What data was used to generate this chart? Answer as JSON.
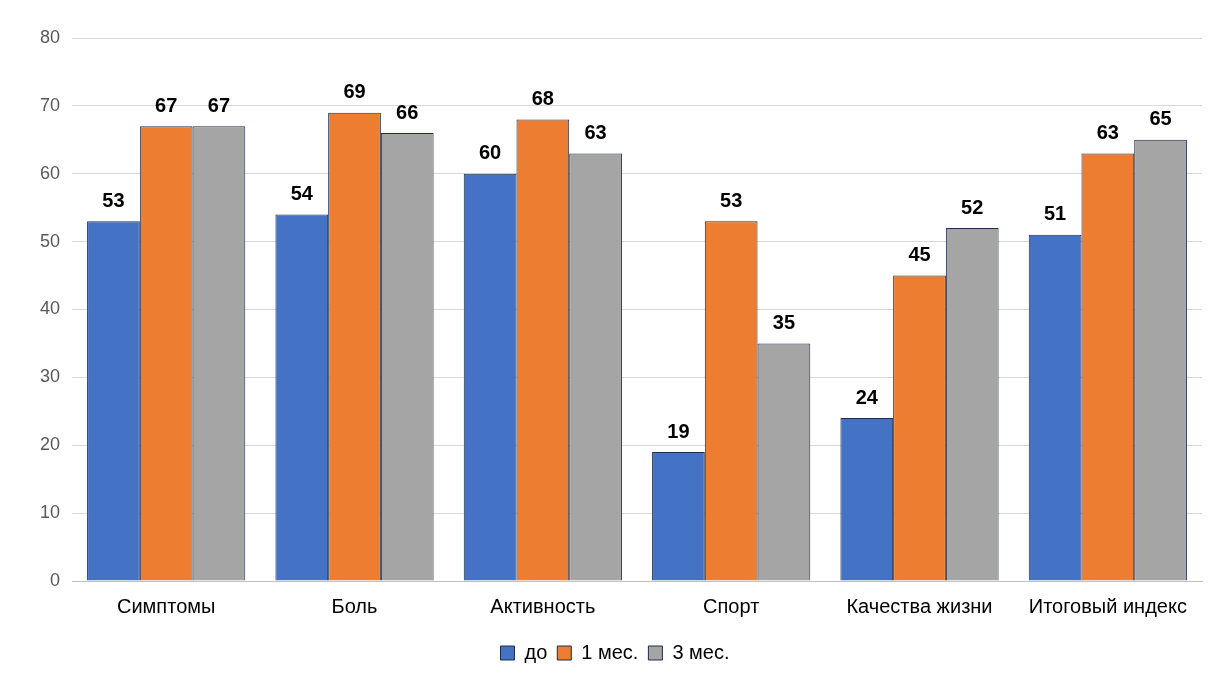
{
  "chart_data": {
    "type": "bar",
    "categories": [
      "Симптомы",
      "Боль",
      "Активность",
      "Спорт",
      "Качества жизни",
      "Итоговый индекс"
    ],
    "series": [
      {
        "name": "до",
        "color": "#4472c4",
        "values": [
          53,
          54,
          60,
          19,
          24,
          51
        ]
      },
      {
        "name": "1 мес.",
        "color": "#ed7d31",
        "values": [
          67,
          69,
          68,
          53,
          45,
          63
        ]
      },
      {
        "name": "3 мес.",
        "color": "#a5a5a5",
        "values": [
          67,
          66,
          63,
          35,
          52,
          65
        ]
      }
    ],
    "ylim": [
      0,
      80
    ],
    "yticks": [
      0,
      10,
      20,
      30,
      40,
      50,
      60,
      70,
      80
    ],
    "grid": "y",
    "legend": "bottom",
    "data_labels": true
  }
}
